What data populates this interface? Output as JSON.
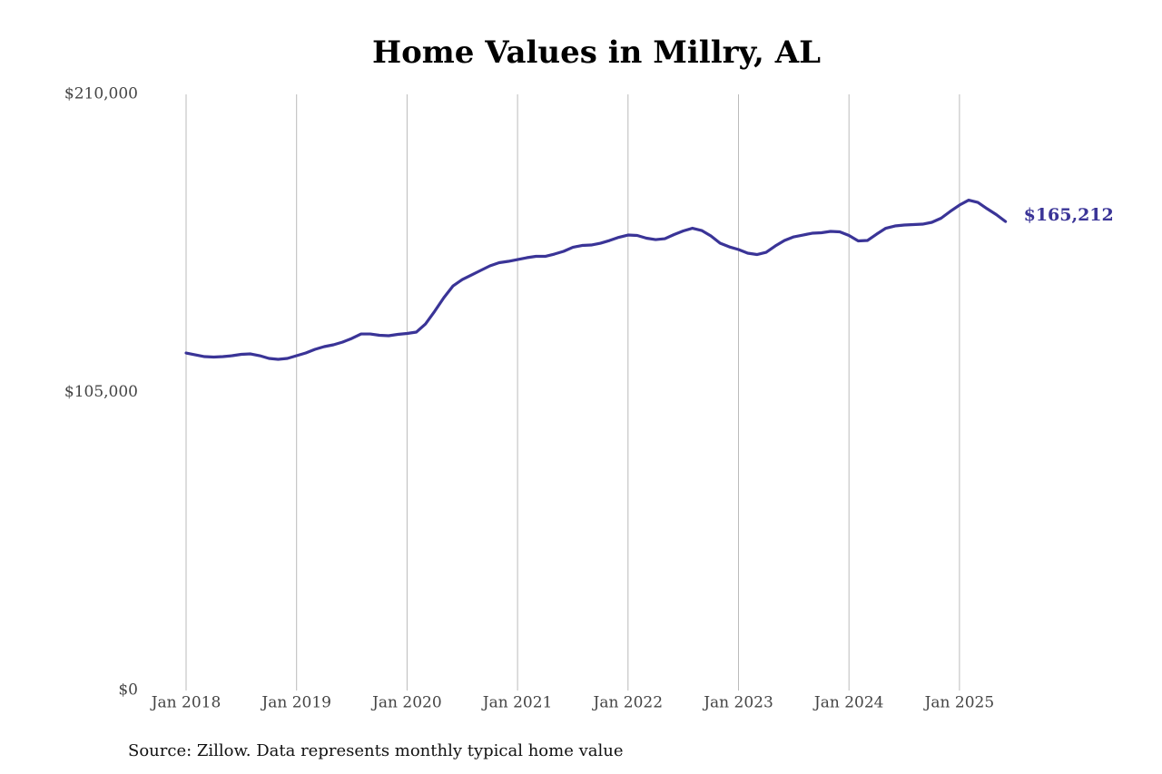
{
  "chart_data": {
    "type": "line",
    "title": "Home Values in Millry, AL",
    "source": "Source: Zillow. Data represents monthly typical home value",
    "x": [
      "2018-01",
      "2018-02",
      "2018-03",
      "2018-04",
      "2018-05",
      "2018-06",
      "2018-07",
      "2018-08",
      "2018-09",
      "2018-10",
      "2018-11",
      "2018-12",
      "2019-01",
      "2019-02",
      "2019-03",
      "2019-04",
      "2019-05",
      "2019-06",
      "2019-07",
      "2019-08",
      "2019-09",
      "2019-10",
      "2019-11",
      "2019-12",
      "2020-01",
      "2020-02",
      "2020-03",
      "2020-04",
      "2020-05",
      "2020-06",
      "2020-07",
      "2020-08",
      "2020-09",
      "2020-10",
      "2020-11",
      "2020-12",
      "2021-01",
      "2021-02",
      "2021-03",
      "2021-04",
      "2021-05",
      "2021-06",
      "2021-07",
      "2021-08",
      "2021-09",
      "2021-10",
      "2021-11",
      "2021-12",
      "2022-01",
      "2022-02",
      "2022-03",
      "2022-04",
      "2022-05",
      "2022-06",
      "2022-07",
      "2022-08",
      "2022-09",
      "2022-10",
      "2022-11",
      "2022-12",
      "2023-01",
      "2023-02",
      "2023-03",
      "2023-04",
      "2023-05",
      "2023-06",
      "2023-07",
      "2023-08",
      "2023-09",
      "2023-10",
      "2023-11",
      "2023-12",
      "2024-01",
      "2024-02",
      "2024-03",
      "2024-04",
      "2024-05",
      "2024-06",
      "2024-07",
      "2024-08",
      "2024-09",
      "2024-10",
      "2024-11",
      "2024-12",
      "2025-01",
      "2025-02",
      "2025-03",
      "2025-04",
      "2025-05",
      "2025-06"
    ],
    "series": [
      {
        "color": "#3a3497",
        "values": [
          118900,
          118260,
          117620,
          117460,
          117620,
          117940,
          118420,
          118580,
          117940,
          116980,
          116660,
          116980,
          117940,
          118900,
          120180,
          121140,
          121780,
          122740,
          124020,
          125600,
          125600,
          125140,
          124980,
          125460,
          125780,
          126250,
          129130,
          133600,
          138400,
          142550,
          144790,
          146390,
          147990,
          149590,
          150700,
          151180,
          151820,
          152460,
          152940,
          152940,
          153740,
          154700,
          156130,
          156770,
          156930,
          157570,
          158530,
          159650,
          160450,
          160290,
          159330,
          158850,
          159170,
          160610,
          161890,
          162850,
          162050,
          160130,
          157570,
          156290,
          155340,
          154060,
          153580,
          154380,
          156610,
          158530,
          159810,
          160450,
          161090,
          161250,
          161730,
          161570,
          160290,
          158370,
          158530,
          160770,
          162850,
          163650,
          163970,
          164130,
          164290,
          164930,
          166370,
          168770,
          171000,
          172750,
          171950,
          169720,
          167640,
          165212
        ],
        "value_labels": [
          null,
          null,
          null,
          null,
          null,
          null,
          null,
          null,
          null,
          null,
          null,
          null,
          null,
          null,
          null,
          null,
          null,
          null,
          null,
          null,
          null,
          null,
          null,
          null,
          null,
          null,
          null,
          null,
          null,
          null,
          null,
          null,
          null,
          null,
          null,
          null,
          null,
          null,
          null,
          null,
          null,
          null,
          null,
          null,
          null,
          null,
          null,
          null,
          null,
          null,
          null,
          null,
          null,
          null,
          null,
          null,
          null,
          null,
          null,
          null,
          null,
          null,
          null,
          null,
          null,
          null,
          null,
          null,
          null,
          null,
          null,
          null,
          null,
          null,
          null,
          null,
          null,
          null,
          null,
          null,
          null,
          null,
          null,
          null,
          null,
          null,
          null,
          null,
          null,
          "$165,212"
        ]
      }
    ],
    "ylim": [
      0,
      210000
    ],
    "yticks": [
      {
        "value": 0,
        "label": "$0"
      },
      {
        "value": 105000,
        "label": "$105,000"
      },
      {
        "value": 210000,
        "label": "$210,000"
      }
    ],
    "xticks": [
      {
        "value": "2018-01",
        "label": "Jan 2018"
      },
      {
        "value": "2019-01",
        "label": "Jan 2019"
      },
      {
        "value": "2020-01",
        "label": "Jan 2020"
      },
      {
        "value": "2021-01",
        "label": "Jan 2021"
      },
      {
        "value": "2022-01",
        "label": "Jan 2022"
      },
      {
        "value": "2023-01",
        "label": "Jan 2023"
      },
      {
        "value": "2024-01",
        "label": "Jan 2024"
      },
      {
        "value": "2025-01",
        "label": "Jan 2025"
      }
    ],
    "grid": "x"
  }
}
